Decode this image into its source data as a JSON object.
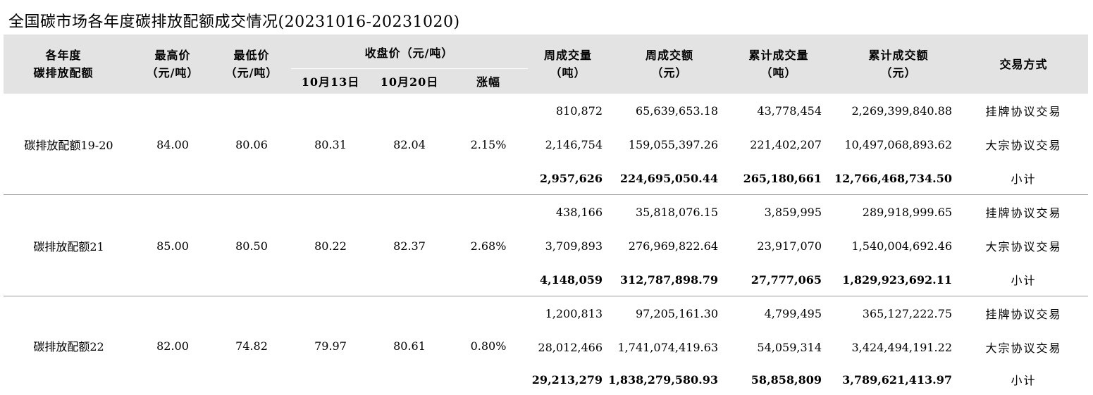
{
  "title": "全国碳市场各年度碳排放配额成交情况(20231016-20231020)",
  "header": {
    "col_quota": [
      "各年度",
      "碳排放配额"
    ],
    "col_high": [
      "最高价",
      "（元/吨）"
    ],
    "col_low": [
      "最低价",
      "（元/吨）"
    ],
    "col_close_group": "收盘价（元/吨）",
    "col_close_1": "10月13日",
    "col_close_2": "10月20日",
    "col_change": "涨幅",
    "col_week_vol": [
      "周成交量",
      "（吨）"
    ],
    "col_week_amt": [
      "周成交额",
      "（元）"
    ],
    "col_cum_vol": [
      "累计成交量",
      "（吨）"
    ],
    "col_cum_amt": [
      "累计成交额",
      "（元）"
    ],
    "col_method": "交易方式"
  },
  "groups": [
    {
      "name": "碳排放配额19-20",
      "high": "84.00",
      "low": "80.06",
      "close1": "80.31",
      "close2": "82.04",
      "change": "2.15%",
      "rows": [
        {
          "week_vol": "810,872",
          "week_amt": "65,639,653.18",
          "cum_vol": "43,778,454",
          "cum_amt": "2,269,399,840.88",
          "method": "挂牌协议交易"
        },
        {
          "week_vol": "2,146,754",
          "week_amt": "159,055,397.26",
          "cum_vol": "221,402,207",
          "cum_amt": "10,497,068,893.62",
          "method": "大宗协议交易"
        },
        {
          "week_vol": "2,957,626",
          "week_amt": "224,695,050.44",
          "cum_vol": "265,180,661",
          "cum_amt": "12,766,468,734.50",
          "method": "小计"
        }
      ]
    },
    {
      "name": "碳排放配额21",
      "high": "85.00",
      "low": "80.50",
      "close1": "80.22",
      "close2": "82.37",
      "change": "2.68%",
      "rows": [
        {
          "week_vol": "438,166",
          "week_amt": "35,818,076.15",
          "cum_vol": "3,859,995",
          "cum_amt": "289,918,999.65",
          "method": "挂牌协议交易"
        },
        {
          "week_vol": "3,709,893",
          "week_amt": "276,969,822.64",
          "cum_vol": "23,917,070",
          "cum_amt": "1,540,004,692.46",
          "method": "大宗协议交易"
        },
        {
          "week_vol": "4,148,059",
          "week_amt": "312,787,898.79",
          "cum_vol": "27,777,065",
          "cum_amt": "1,829,923,692.11",
          "method": "小计"
        }
      ]
    },
    {
      "name": "碳排放配额22",
      "high": "82.00",
      "low": "74.82",
      "close1": "79.97",
      "close2": "80.61",
      "change": "0.80%",
      "rows": [
        {
          "week_vol": "1,200,813",
          "week_amt": "97,205,161.30",
          "cum_vol": "4,799,495",
          "cum_amt": "365,127,222.75",
          "method": "挂牌协议交易"
        },
        {
          "week_vol": "28,012,466",
          "week_amt": "1,741,074,419.63",
          "cum_vol": "54,059,314",
          "cum_amt": "3,424,494,191.22",
          "method": "大宗协议交易"
        },
        {
          "week_vol": "29,213,279",
          "week_amt": "1,838,279,580.93",
          "cum_vol": "58,858,809",
          "cum_amt": "3,789,621,413.97",
          "method": "小计"
        }
      ]
    }
  ]
}
